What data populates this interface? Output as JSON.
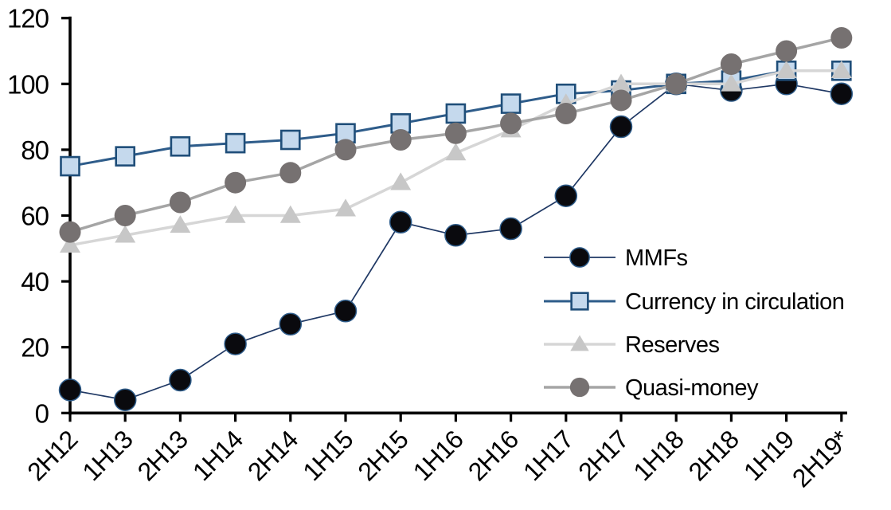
{
  "page": {
    "background": "#ffffff",
    "title": ""
  },
  "chart_data": {
    "type": "line",
    "title": "",
    "xlabel": "",
    "ylabel": "",
    "categories": [
      "2H12",
      "1H13",
      "2H13",
      "1H14",
      "2H14",
      "1H15",
      "2H15",
      "1H16",
      "2H16",
      "1H17",
      "2H17",
      "1H18",
      "2H18",
      "1H19",
      "2H19*"
    ],
    "series": [
      {
        "name": "MMFs",
        "values": [
          7,
          4,
          10,
          21,
          27,
          31,
          58,
          54,
          56,
          66,
          87,
          100,
          98,
          100,
          97
        ],
        "marker": "circle",
        "marker_fill": "#0a0a0e",
        "marker_stroke": "#2e5c8a",
        "marker_stroke_width": 1.5,
        "line_color": "#1f3864",
        "line_width": 1.7,
        "marker_size": 27
      },
      {
        "name": "Currency in circulation",
        "values": [
          75,
          78,
          81,
          82,
          83,
          85,
          88,
          91,
          94,
          97,
          98,
          100,
          101,
          104,
          104
        ],
        "marker": "square",
        "marker_fill": "#c5d9ed",
        "marker_stroke": "#1f4e79",
        "marker_stroke_width": 2.6,
        "line_color": "#2e5c8a",
        "line_width": 3,
        "marker_size": 23
      },
      {
        "name": "Reserves",
        "values": [
          51,
          54,
          57,
          60,
          60,
          62,
          70,
          79,
          86,
          94,
          100,
          100,
          100,
          104,
          104
        ],
        "marker": "triangle",
        "marker_fill": "#c7c7c7",
        "marker_stroke": "none",
        "marker_stroke_width": 0,
        "line_color": "#d6d6d6",
        "line_width": 3.5,
        "marker_size": 26
      },
      {
        "name": "Quasi-money",
        "values": [
          55,
          60,
          64,
          70,
          73,
          80,
          83,
          85,
          88,
          91,
          95,
          100,
          106,
          110,
          114
        ],
        "marker": "circle",
        "marker_fill": "#767171",
        "marker_stroke": "none",
        "marker_stroke_width": 0,
        "line_color": "#a5a5a5",
        "line_width": 3.5,
        "marker_size": 27
      }
    ],
    "ylim": [
      0,
      120
    ],
    "yticks": [
      0,
      20,
      40,
      60,
      80,
      100,
      120
    ],
    "grid": false,
    "axis_color": "#000000",
    "tick_label_color": "#000000",
    "legend": {
      "position": "inside-right",
      "entries": [
        "MMFs",
        "Currency in circulation",
        "Reserves",
        "Quasi-money"
      ]
    }
  }
}
